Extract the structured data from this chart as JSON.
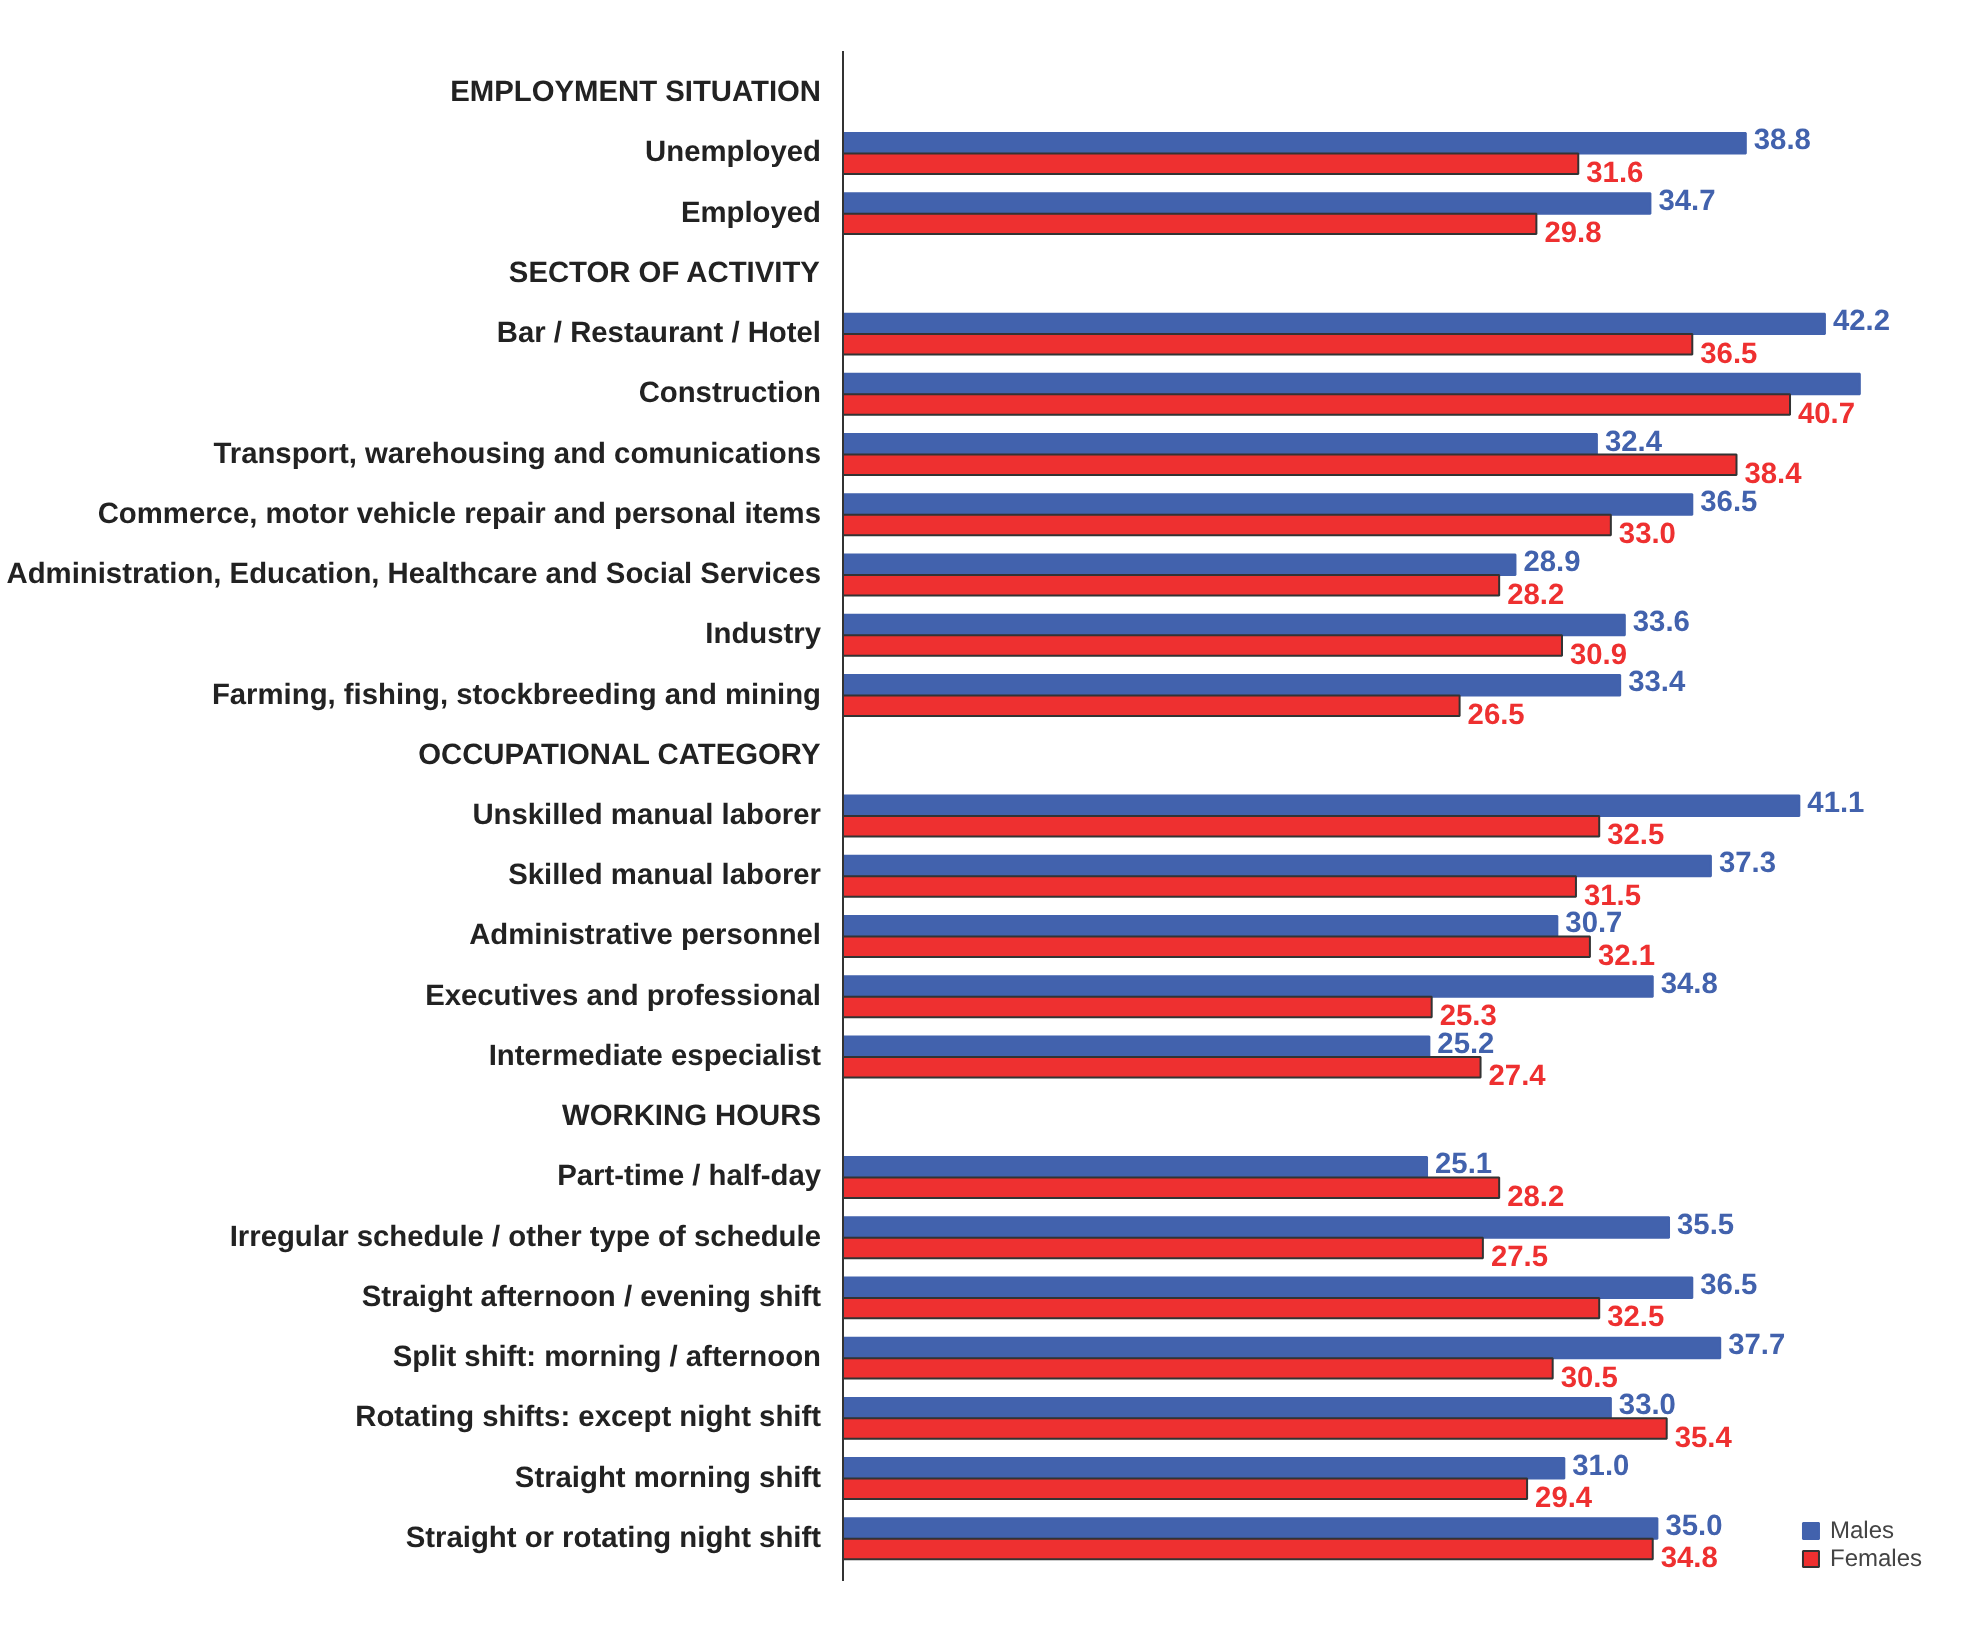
{
  "chart_data": {
    "type": "bar",
    "orientation": "horizontal",
    "categories": [
      "EMPLOYMENT SITUATION",
      "Unemployed",
      "Employed",
      "SECTOR OF ACTIVITY",
      "Bar / Restaurant / Hotel",
      "Construction",
      "Transport, warehousing and comunications",
      "Commerce, motor vehicle repair and personal items",
      "Administration, Education, Healthcare and Social Services",
      "Industry",
      "Farming, fishing, stockbreeding and mining",
      "OCCUPATIONAL CATEGORY",
      "Unskilled manual laborer",
      "Skilled manual laborer",
      "Administrative personnel",
      "Executives and professional",
      "Intermediate especialist",
      "WORKING HOURS",
      "Part-time / half-day",
      "Irregular schedule / other type of schedule",
      "Straight afternoon / evening shift",
      "Split shift: morning / afternoon",
      "Rotating shifts: except night shift",
      "Straight morning shift",
      "Straight or rotating night shift"
    ],
    "series": [
      {
        "name": "Males",
        "color": "#4262ad",
        "values": [
          null,
          38.8,
          34.7,
          null,
          42.2,
          43.7,
          32.4,
          36.5,
          28.9,
          33.6,
          33.4,
          null,
          41.1,
          37.3,
          30.7,
          34.8,
          25.2,
          null,
          25.1,
          35.5,
          36.5,
          37.7,
          33.0,
          31.0,
          35.0
        ],
        "value_labels": [
          null,
          "38.8",
          "34.7",
          null,
          "42.2",
          null,
          "32.4",
          "36.5",
          "28.9",
          "33.6",
          "33.4",
          null,
          "41.1",
          "37.3",
          "30.7",
          "34.8",
          "25.2",
          null,
          "25.1",
          "35.5",
          "36.5",
          "37.7",
          "33.0",
          "31.0",
          "35.0"
        ]
      },
      {
        "name": "Females",
        "color": "#ee3030",
        "values": [
          null,
          31.6,
          29.8,
          null,
          36.5,
          40.7,
          38.4,
          33.0,
          28.2,
          30.9,
          26.5,
          null,
          32.5,
          31.5,
          32.1,
          25.3,
          27.4,
          null,
          28.2,
          27.5,
          32.5,
          30.5,
          35.4,
          29.4,
          34.8
        ],
        "value_labels": [
          null,
          "31.6",
          "29.8",
          null,
          "36.5",
          "40.7",
          "38.4",
          "33.0",
          "28.2",
          "30.9",
          "26.5",
          null,
          "32.5",
          "31.5",
          "32.1",
          "25.3",
          "27.4",
          null,
          "28.2",
          "27.5",
          "32.5",
          "30.5",
          "35.4",
          "29.4",
          "34.8"
        ]
      }
    ],
    "legend": "bottom right",
    "grid": false
  }
}
